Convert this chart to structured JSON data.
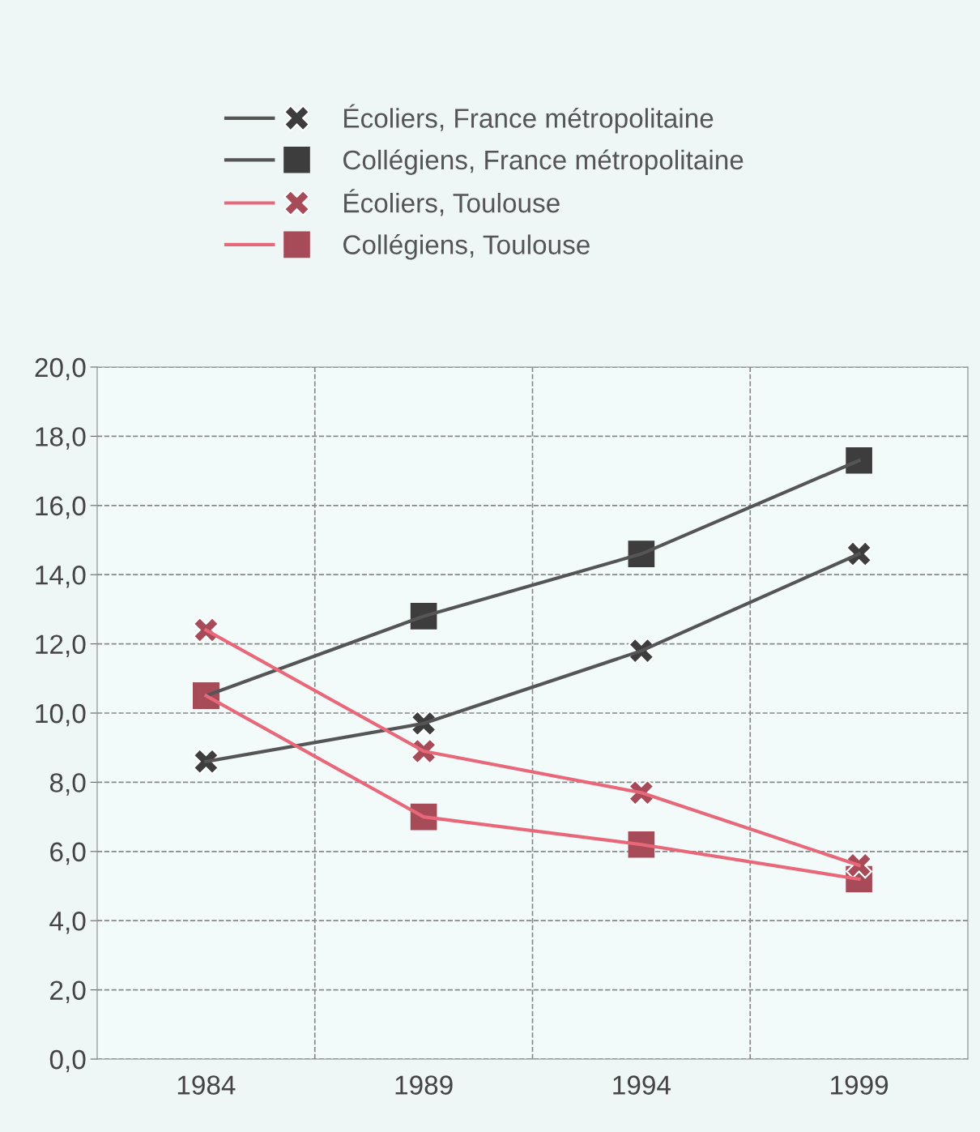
{
  "chart_data": {
    "type": "line",
    "categories": [
      "1984",
      "1989",
      "1994",
      "1999"
    ],
    "series": [
      {
        "name": "Écoliers, France métropolitaine",
        "color": "#555555",
        "marker": "cross",
        "values": [
          8.6,
          9.7,
          11.8,
          14.6
        ]
      },
      {
        "name": "Collégiens, France métropolitaine",
        "color": "#555555",
        "marker": "square",
        "values": [
          10.5,
          12.8,
          14.6,
          17.3
        ]
      },
      {
        "name": "Écoliers, Toulouse",
        "color": "#e8687a",
        "marker": "cross",
        "values": [
          12.4,
          8.9,
          7.7,
          5.6
        ]
      },
      {
        "name": "Collégiens, Toulouse",
        "color": "#e8687a",
        "marker": "square",
        "values": [
          10.5,
          7.0,
          6.2,
          5.2
        ]
      }
    ],
    "ylim": [
      0,
      20
    ],
    "yticks": [
      {
        "value": 0,
        "label": "0,0"
      },
      {
        "value": 2,
        "label": "2,0"
      },
      {
        "value": 4,
        "label": "4,0"
      },
      {
        "value": 6,
        "label": "6,0"
      },
      {
        "value": 8,
        "label": "8,0"
      },
      {
        "value": 10,
        "label": "10,0"
      },
      {
        "value": 12,
        "label": "12,0"
      },
      {
        "value": 14,
        "label": "14,0"
      },
      {
        "value": 16,
        "label": "16,0"
      },
      {
        "value": 18,
        "label": "18,0"
      },
      {
        "value": 20,
        "label": "20,0"
      }
    ],
    "grid": true,
    "legend": "top",
    "line_style": "solid"
  }
}
